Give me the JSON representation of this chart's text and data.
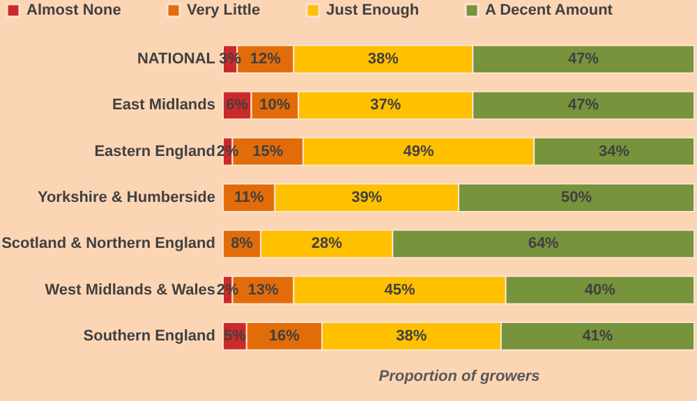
{
  "chart_data": {
    "type": "bar",
    "orientation": "horizontal",
    "stacked": true,
    "xlabel": "Proportion of growers",
    "categories": [
      "NATIONAL",
      "East Midlands",
      "Eastern England",
      "Yorkshire & Humberside",
      "Scotland & Northern England",
      "West Midlands & Wales",
      "Southern England"
    ],
    "series": [
      {
        "name": "Almost None",
        "color": "#cc2a2a",
        "values": [
          3,
          6,
          2,
          0,
          0,
          2,
          5
        ],
        "value_labels": [
          "3%",
          "6%",
          "2%",
          null,
          null,
          "2%",
          "5%"
        ]
      },
      {
        "name": "Very Little",
        "color": "#e36c0a",
        "values": [
          12,
          10,
          15,
          11,
          8,
          13,
          16
        ],
        "value_labels": [
          "12%",
          "10%",
          "15%",
          "11%",
          "8%",
          "13%",
          "16%"
        ]
      },
      {
        "name": "Just Enough",
        "color": "#ffc000",
        "values": [
          38,
          37,
          49,
          39,
          28,
          45,
          38
        ],
        "value_labels": [
          "38%",
          "37%",
          "49%",
          "39%",
          "28%",
          "45%",
          "38%"
        ]
      },
      {
        "name": "A Decent Amount",
        "color": "#77933c",
        "values": [
          47,
          47,
          34,
          50,
          64,
          40,
          41
        ],
        "value_labels": [
          "47%",
          "47%",
          "34%",
          "50%",
          "64%",
          "40%",
          "41%"
        ]
      }
    ],
    "xlim": [
      0,
      100
    ],
    "tick_labels": "y",
    "legend": "top left"
  }
}
